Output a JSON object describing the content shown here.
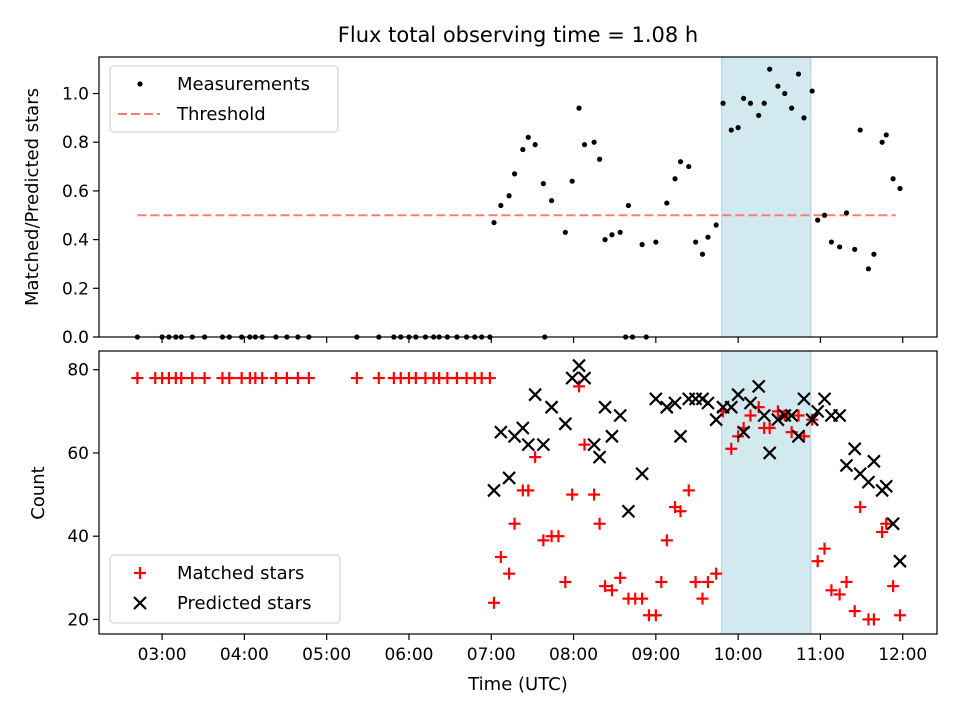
{
  "figure": {
    "title": "Flux total observing time = 1.08 h"
  },
  "chart_data": [
    {
      "type": "scatter",
      "title": "Flux total observing time = 1.08 h",
      "xlabel": "",
      "ylabel": "Matched/Predicted stars",
      "xlim": [
        "02:14",
        "12:25"
      ],
      "ylim": [
        0,
        1.15
      ],
      "yticks": [
        0.0,
        0.2,
        0.4,
        0.6,
        0.8,
        1.0
      ],
      "ytick_labels": [
        "0.0",
        "0.2",
        "0.4",
        "0.6",
        "0.8",
        "1.0"
      ],
      "legend": {
        "placement": "top-left",
        "entries": [
          "Measurements",
          "Threshold"
        ]
      },
      "highlight_span": {
        "x": [
          "09:48",
          "10:53"
        ],
        "color": "#d2e9f0"
      },
      "threshold": {
        "name": "Threshold",
        "x": [
          "02:42",
          "11:55"
        ],
        "y": 0.5,
        "color": "#ff7b7b",
        "style": "dashed"
      },
      "series": [
        {
          "name": "Measurements",
          "color": "#000000",
          "marker": "dot",
          "points": [
            [
              "02:42",
              0
            ],
            [
              "03:00",
              0
            ],
            [
              "03:05",
              0
            ],
            [
              "03:10",
              0
            ],
            [
              "03:14",
              0
            ],
            [
              "03:22",
              0
            ],
            [
              "03:31",
              0
            ],
            [
              "03:44",
              0
            ],
            [
              "03:49",
              0
            ],
            [
              "03:58",
              0
            ],
            [
              "04:04",
              0
            ],
            [
              "04:08",
              0
            ],
            [
              "04:13",
              0
            ],
            [
              "04:23",
              0
            ],
            [
              "04:31",
              0
            ],
            [
              "04:39",
              0
            ],
            [
              "04:47",
              0
            ],
            [
              "05:22",
              0
            ],
            [
              "05:38",
              0
            ],
            [
              "05:49",
              0
            ],
            [
              "05:54",
              0
            ],
            [
              "06:00",
              0
            ],
            [
              "06:05",
              0
            ],
            [
              "06:12",
              0
            ],
            [
              "06:18",
              0
            ],
            [
              "06:22",
              0
            ],
            [
              "06:28",
              0
            ],
            [
              "06:35",
              0
            ],
            [
              "06:42",
              0
            ],
            [
              "06:48",
              0
            ],
            [
              "06:53",
              0
            ],
            [
              "06:59",
              0
            ],
            [
              "07:39",
              0
            ],
            [
              "08:38",
              0
            ],
            [
              "08:43",
              0
            ],
            [
              "08:53",
              0
            ],
            [
              "07:02",
              0.47
            ],
            [
              "07:07",
              0.54
            ],
            [
              "07:13",
              0.58
            ],
            [
              "07:17",
              0.67
            ],
            [
              "07:23",
              0.77
            ],
            [
              "07:27",
              0.82
            ],
            [
              "07:32",
              0.79
            ],
            [
              "07:38",
              0.63
            ],
            [
              "07:44",
              0.56
            ],
            [
              "07:54",
              0.43
            ],
            [
              "07:59",
              0.64
            ],
            [
              "08:04",
              0.94
            ],
            [
              "08:08",
              0.79
            ],
            [
              "08:15",
              0.8
            ],
            [
              "08:19",
              0.73
            ],
            [
              "08:23",
              0.4
            ],
            [
              "08:28",
              0.42
            ],
            [
              "08:34",
              0.43
            ],
            [
              "08:40",
              0.54
            ],
            [
              "08:50",
              0.38
            ],
            [
              "09:00",
              0.39
            ],
            [
              "09:08",
              0.55
            ],
            [
              "09:14",
              0.65
            ],
            [
              "09:18",
              0.72
            ],
            [
              "09:24",
              0.7
            ],
            [
              "09:29",
              0.39
            ],
            [
              "09:34",
              0.34
            ],
            [
              "09:38",
              0.41
            ],
            [
              "09:44",
              0.46
            ],
            [
              "09:49",
              0.96
            ],
            [
              "09:55",
              0.85
            ],
            [
              "10:00",
              0.86
            ],
            [
              "10:04",
              0.98
            ],
            [
              "10:09",
              0.96
            ],
            [
              "10:15",
              0.91
            ],
            [
              "10:19",
              0.96
            ],
            [
              "10:23",
              1.1
            ],
            [
              "10:29",
              1.03
            ],
            [
              "10:34",
              1.0
            ],
            [
              "10:39",
              0.94
            ],
            [
              "10:44",
              1.08
            ],
            [
              "10:48",
              0.9
            ],
            [
              "10:54",
              1.01
            ],
            [
              "10:58",
              0.48
            ],
            [
              "11:03",
              0.5
            ],
            [
              "11:08",
              0.39
            ],
            [
              "11:14",
              0.37
            ],
            [
              "11:19",
              0.51
            ],
            [
              "11:25",
              0.36
            ],
            [
              "11:29",
              0.85
            ],
            [
              "11:35",
              0.28
            ],
            [
              "11:39",
              0.34
            ],
            [
              "11:45",
              0.8
            ],
            [
              "11:48",
              0.83
            ],
            [
              "11:53",
              0.65
            ],
            [
              "11:58",
              0.61
            ]
          ]
        }
      ]
    },
    {
      "type": "scatter",
      "title": "",
      "xlabel": "Time (UTC)",
      "ylabel": "Count",
      "xlim": [
        "02:14",
        "12:25"
      ],
      "ylim": [
        16.5,
        84.5
      ],
      "yticks": [
        20,
        40,
        60,
        80
      ],
      "ytick_labels": [
        "20",
        "40",
        "60",
        "80"
      ],
      "xticks": [
        "03:00",
        "04:00",
        "05:00",
        "06:00",
        "07:00",
        "08:00",
        "09:00",
        "10:00",
        "11:00",
        "12:00"
      ],
      "xtick_labels": [
        "03:00",
        "04:00",
        "05:00",
        "06:00",
        "07:00",
        "08:00",
        "09:00",
        "10:00",
        "11:00",
        "12:00"
      ],
      "legend": {
        "placement": "bottom-left",
        "entries": [
          "Matched stars",
          "Predicted stars"
        ]
      },
      "highlight_span": {
        "x": [
          "09:48",
          "10:53"
        ],
        "color": "#d2e9f0"
      },
      "series": [
        {
          "name": "Matched stars",
          "color": "#ff0000",
          "marker": "plus",
          "points": [
            [
              "02:42",
              78
            ],
            [
              "02:55",
              78
            ],
            [
              "03:00",
              78
            ],
            [
              "03:05",
              78
            ],
            [
              "03:10",
              78
            ],
            [
              "03:14",
              78
            ],
            [
              "03:22",
              78
            ],
            [
              "03:31",
              78
            ],
            [
              "03:44",
              78
            ],
            [
              "03:49",
              78
            ],
            [
              "03:58",
              78
            ],
            [
              "04:04",
              78
            ],
            [
              "04:08",
              78
            ],
            [
              "04:13",
              78
            ],
            [
              "04:23",
              78
            ],
            [
              "04:31",
              78
            ],
            [
              "04:39",
              78
            ],
            [
              "04:47",
              78
            ],
            [
              "05:22",
              78
            ],
            [
              "05:38",
              78
            ],
            [
              "05:49",
              78
            ],
            [
              "05:54",
              78
            ],
            [
              "06:00",
              78
            ],
            [
              "06:05",
              78
            ],
            [
              "06:12",
              78
            ],
            [
              "06:18",
              78
            ],
            [
              "06:22",
              78
            ],
            [
              "06:28",
              78
            ],
            [
              "06:35",
              78
            ],
            [
              "06:42",
              78
            ],
            [
              "06:48",
              78
            ],
            [
              "06:53",
              78
            ],
            [
              "06:59",
              78
            ],
            [
              "07:02",
              24
            ],
            [
              "07:07",
              35
            ],
            [
              "07:13",
              31
            ],
            [
              "07:17",
              43
            ],
            [
              "07:23",
              51
            ],
            [
              "07:27",
              51
            ],
            [
              "07:32",
              59
            ],
            [
              "07:38",
              39
            ],
            [
              "07:44",
              40
            ],
            [
              "07:49",
              40
            ],
            [
              "07:54",
              29
            ],
            [
              "07:59",
              50
            ],
            [
              "08:04",
              76
            ],
            [
              "08:08",
              62
            ],
            [
              "08:15",
              50
            ],
            [
              "08:19",
              43
            ],
            [
              "08:23",
              28
            ],
            [
              "08:28",
              27
            ],
            [
              "08:34",
              30
            ],
            [
              "08:40",
              25
            ],
            [
              "08:45",
              25
            ],
            [
              "08:50",
              25
            ],
            [
              "08:55",
              21
            ],
            [
              "09:00",
              21
            ],
            [
              "09:04",
              29
            ],
            [
              "09:08",
              39
            ],
            [
              "09:14",
              47
            ],
            [
              "09:18",
              46
            ],
            [
              "09:24",
              51
            ],
            [
              "09:29",
              29
            ],
            [
              "09:34",
              25
            ],
            [
              "09:38",
              29
            ],
            [
              "09:44",
              31
            ],
            [
              "09:49",
              70
            ],
            [
              "09:55",
              61
            ],
            [
              "10:00",
              64
            ],
            [
              "10:04",
              66
            ],
            [
              "10:09",
              69
            ],
            [
              "10:15",
              71
            ],
            [
              "10:19",
              66
            ],
            [
              "10:23",
              66
            ],
            [
              "10:29",
              70
            ],
            [
              "10:34",
              69
            ],
            [
              "10:39",
              65
            ],
            [
              "10:44",
              69
            ],
            [
              "10:48",
              64
            ],
            [
              "10:54",
              68
            ],
            [
              "10:58",
              34
            ],
            [
              "11:03",
              37
            ],
            [
              "11:08",
              27
            ],
            [
              "11:14",
              26
            ],
            [
              "11:19",
              29
            ],
            [
              "11:25",
              22
            ],
            [
              "11:29",
              47
            ],
            [
              "11:35",
              20
            ],
            [
              "11:39",
              20
            ],
            [
              "11:45",
              41
            ],
            [
              "11:48",
              43
            ],
            [
              "11:53",
              28
            ],
            [
              "11:58",
              21
            ]
          ]
        },
        {
          "name": "Predicted stars",
          "color": "#000000",
          "marker": "x",
          "points": [
            [
              "07:02",
              51
            ],
            [
              "07:07",
              65
            ],
            [
              "07:13",
              54
            ],
            [
              "07:17",
              64
            ],
            [
              "07:23",
              66
            ],
            [
              "07:27",
              62
            ],
            [
              "07:32",
              74
            ],
            [
              "07:38",
              62
            ],
            [
              "07:44",
              71
            ],
            [
              "07:54",
              67
            ],
            [
              "07:59",
              78
            ],
            [
              "08:04",
              81
            ],
            [
              "08:08",
              78
            ],
            [
              "08:15",
              62
            ],
            [
              "08:19",
              59
            ],
            [
              "08:23",
              71
            ],
            [
              "08:28",
              64
            ],
            [
              "08:34",
              69
            ],
            [
              "08:40",
              46
            ],
            [
              "08:50",
              55
            ],
            [
              "09:00",
              73
            ],
            [
              "09:08",
              71
            ],
            [
              "09:14",
              72
            ],
            [
              "09:18",
              64
            ],
            [
              "09:24",
              73
            ],
            [
              "09:29",
              73
            ],
            [
              "09:34",
              73
            ],
            [
              "09:38",
              72
            ],
            [
              "09:44",
              68
            ],
            [
              "09:49",
              71
            ],
            [
              "09:55",
              71
            ],
            [
              "10:00",
              74
            ],
            [
              "10:04",
              65
            ],
            [
              "10:09",
              72
            ],
            [
              "10:15",
              76
            ],
            [
              "10:19",
              69
            ],
            [
              "10:23",
              60
            ],
            [
              "10:29",
              68
            ],
            [
              "10:34",
              69
            ],
            [
              "10:39",
              69
            ],
            [
              "10:44",
              64
            ],
            [
              "10:48",
              73
            ],
            [
              "10:54",
              68
            ],
            [
              "10:58",
              70
            ],
            [
              "11:03",
              73
            ],
            [
              "11:08",
              69
            ],
            [
              "11:14",
              69
            ],
            [
              "11:19",
              57
            ],
            [
              "11:25",
              61
            ],
            [
              "11:29",
              55
            ],
            [
              "11:35",
              53
            ],
            [
              "11:39",
              58
            ],
            [
              "11:45",
              51
            ],
            [
              "11:48",
              52
            ],
            [
              "11:53",
              43
            ],
            [
              "11:58",
              34
            ]
          ]
        }
      ]
    }
  ]
}
